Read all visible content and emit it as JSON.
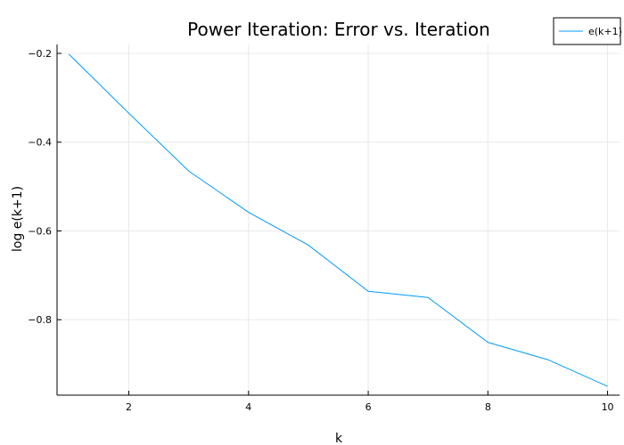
{
  "chart_data": {
    "type": "line",
    "title": "Power Iteration: Error vs. Iteration",
    "xlabel": "k",
    "ylabel": "log e(k+1)",
    "xlim": [
      0.8,
      10.2
    ],
    "ylim": [
      -0.97,
      -0.18
    ],
    "xticks": [
      2,
      4,
      6,
      8,
      10
    ],
    "yticks": [
      -0.2,
      -0.4,
      -0.6,
      -0.8
    ],
    "grid": true,
    "legend_position": "top-right",
    "series": [
      {
        "name": "e(k+1)",
        "color": "#009af9",
        "x": [
          1,
          2,
          3,
          4,
          5,
          6,
          7,
          8,
          9,
          10
        ],
        "y": [
          -0.202,
          -0.335,
          -0.465,
          -0.558,
          -0.632,
          -0.736,
          -0.75,
          -0.851,
          -0.89,
          -0.95
        ]
      }
    ]
  }
}
